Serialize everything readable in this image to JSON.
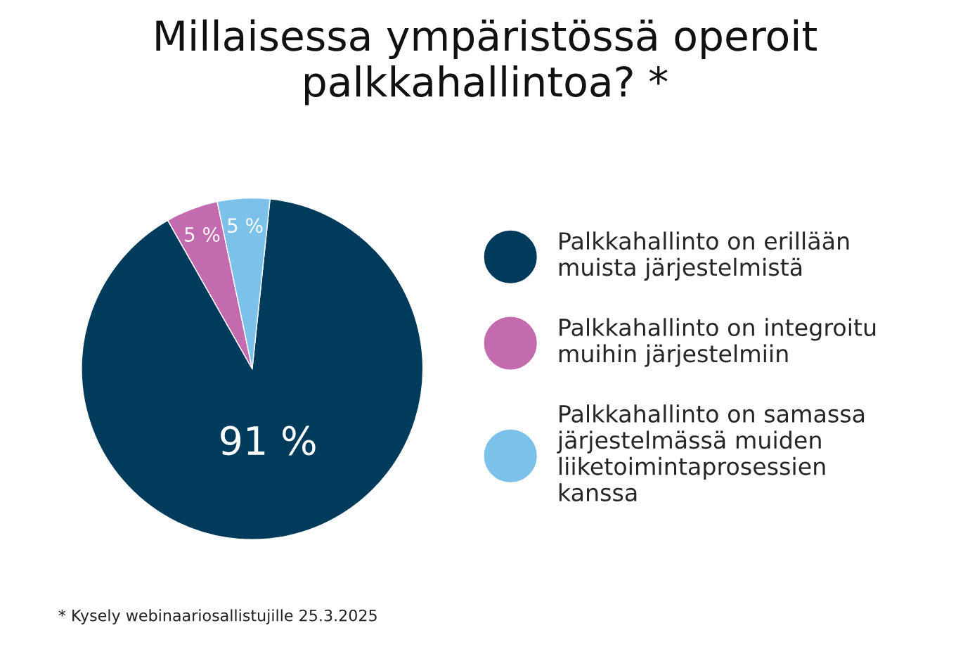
{
  "chart_data": {
    "type": "pie",
    "title": "Millaisessa ympäristössä operoit\npalkkahallintoa? *",
    "categories": [
      "Palkkahallinto on erillään\nmuista järjestelmistä",
      "Palkkahallinto on integroitu\nmuihin järjestelmiin",
      "Palkkahallinto on samassa\njärjestelmässä muiden\nliiketoimintaprosessien\nkanssa"
    ],
    "values": [
      91,
      5,
      5
    ],
    "colors": [
      "#003b5c",
      "#c26bae",
      "#7cc1ea"
    ],
    "value_labels": [
      "91 %",
      "5 %",
      "5 %"
    ],
    "legend": "right",
    "annotations": [
      "* Kysely webinaariosallistujille 25.3.2025"
    ]
  }
}
